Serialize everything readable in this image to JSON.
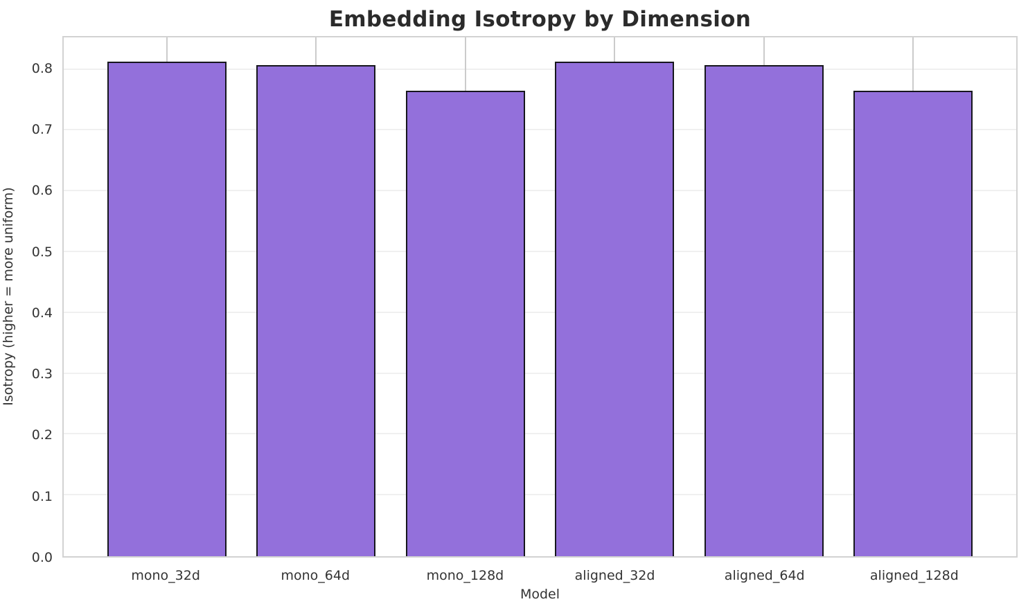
{
  "chart_data": {
    "type": "bar",
    "title": "Embedding Isotropy by Dimension",
    "xlabel": "Model",
    "ylabel": "Isotropy (higher = more uniform)",
    "categories": [
      "mono_32d",
      "mono_64d",
      "mono_128d",
      "aligned_32d",
      "aligned_64d",
      "aligned_128d"
    ],
    "values": [
      0.813,
      0.807,
      0.765,
      0.813,
      0.807,
      0.765
    ],
    "ylim": [
      0,
      0.853
    ],
    "yticks": [
      0.0,
      0.1,
      0.2,
      0.3,
      0.4,
      0.5,
      0.6,
      0.7,
      0.8
    ],
    "ytick_labels": [
      "0.0",
      "0.1",
      "0.2",
      "0.3",
      "0.4",
      "0.5",
      "0.6",
      "0.7",
      "0.8"
    ],
    "xlim": [
      -0.69,
      5.69
    ],
    "bar_width_units": 0.8,
    "grid": true,
    "legend_position": "none",
    "colors": {
      "bar_fill": "#9370db",
      "bar_edge": "#16161d",
      "gridline_horizontal": "#f0f0f0",
      "gridline_vertical": "#cbcbcb",
      "plot_border": "#d2d2d2",
      "title_text": "#2b2b2b",
      "tick_text": "#333333",
      "background": "#ffffff"
    }
  }
}
